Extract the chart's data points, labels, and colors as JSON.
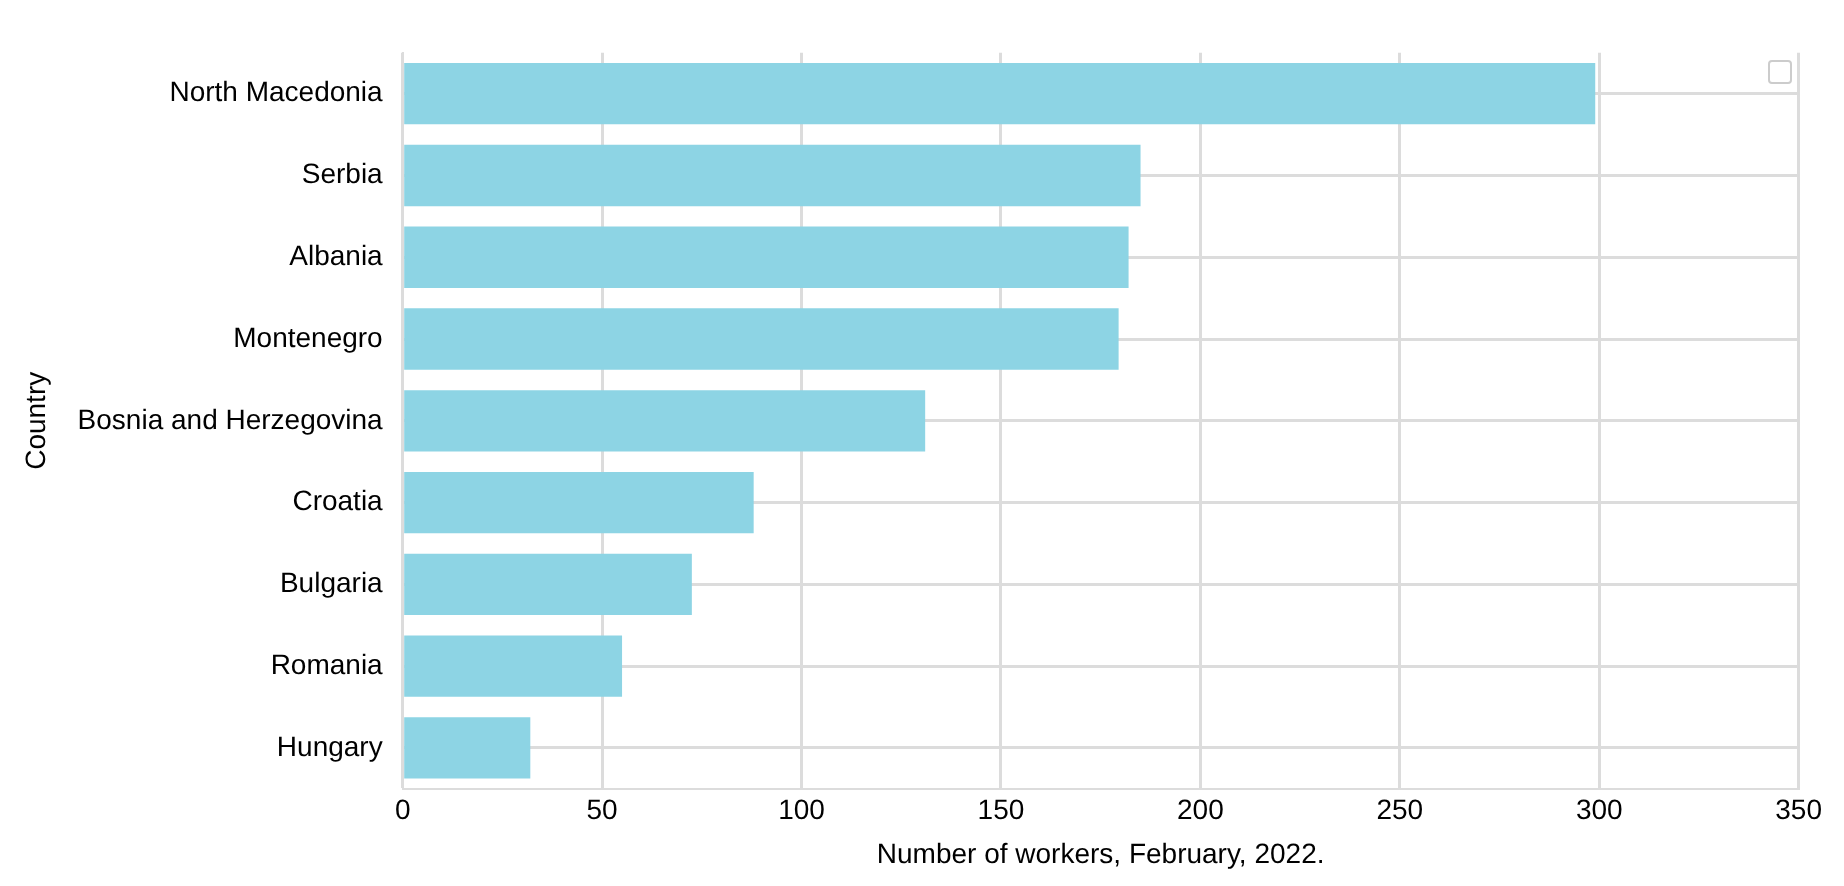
{
  "chart_data": {
    "type": "bar",
    "orientation": "horizontal",
    "xlabel": "Number of workers, February, 2022.",
    "ylabel": "Country",
    "categories": [
      "North Macedonia",
      "Serbia",
      "Albania",
      "Montenegro",
      "Bosnia and Herzegovina",
      "Croatia",
      "Bulgaria",
      "Romania",
      "Hungary"
    ],
    "values": [
      299,
      185,
      182,
      179.5,
      131,
      88,
      72.5,
      55,
      32
    ],
    "color": "#8dd4e4",
    "xlim": [
      0,
      350
    ],
    "xticks": [
      0,
      50,
      100,
      150,
      200,
      250,
      300,
      350
    ],
    "grid": true
  }
}
